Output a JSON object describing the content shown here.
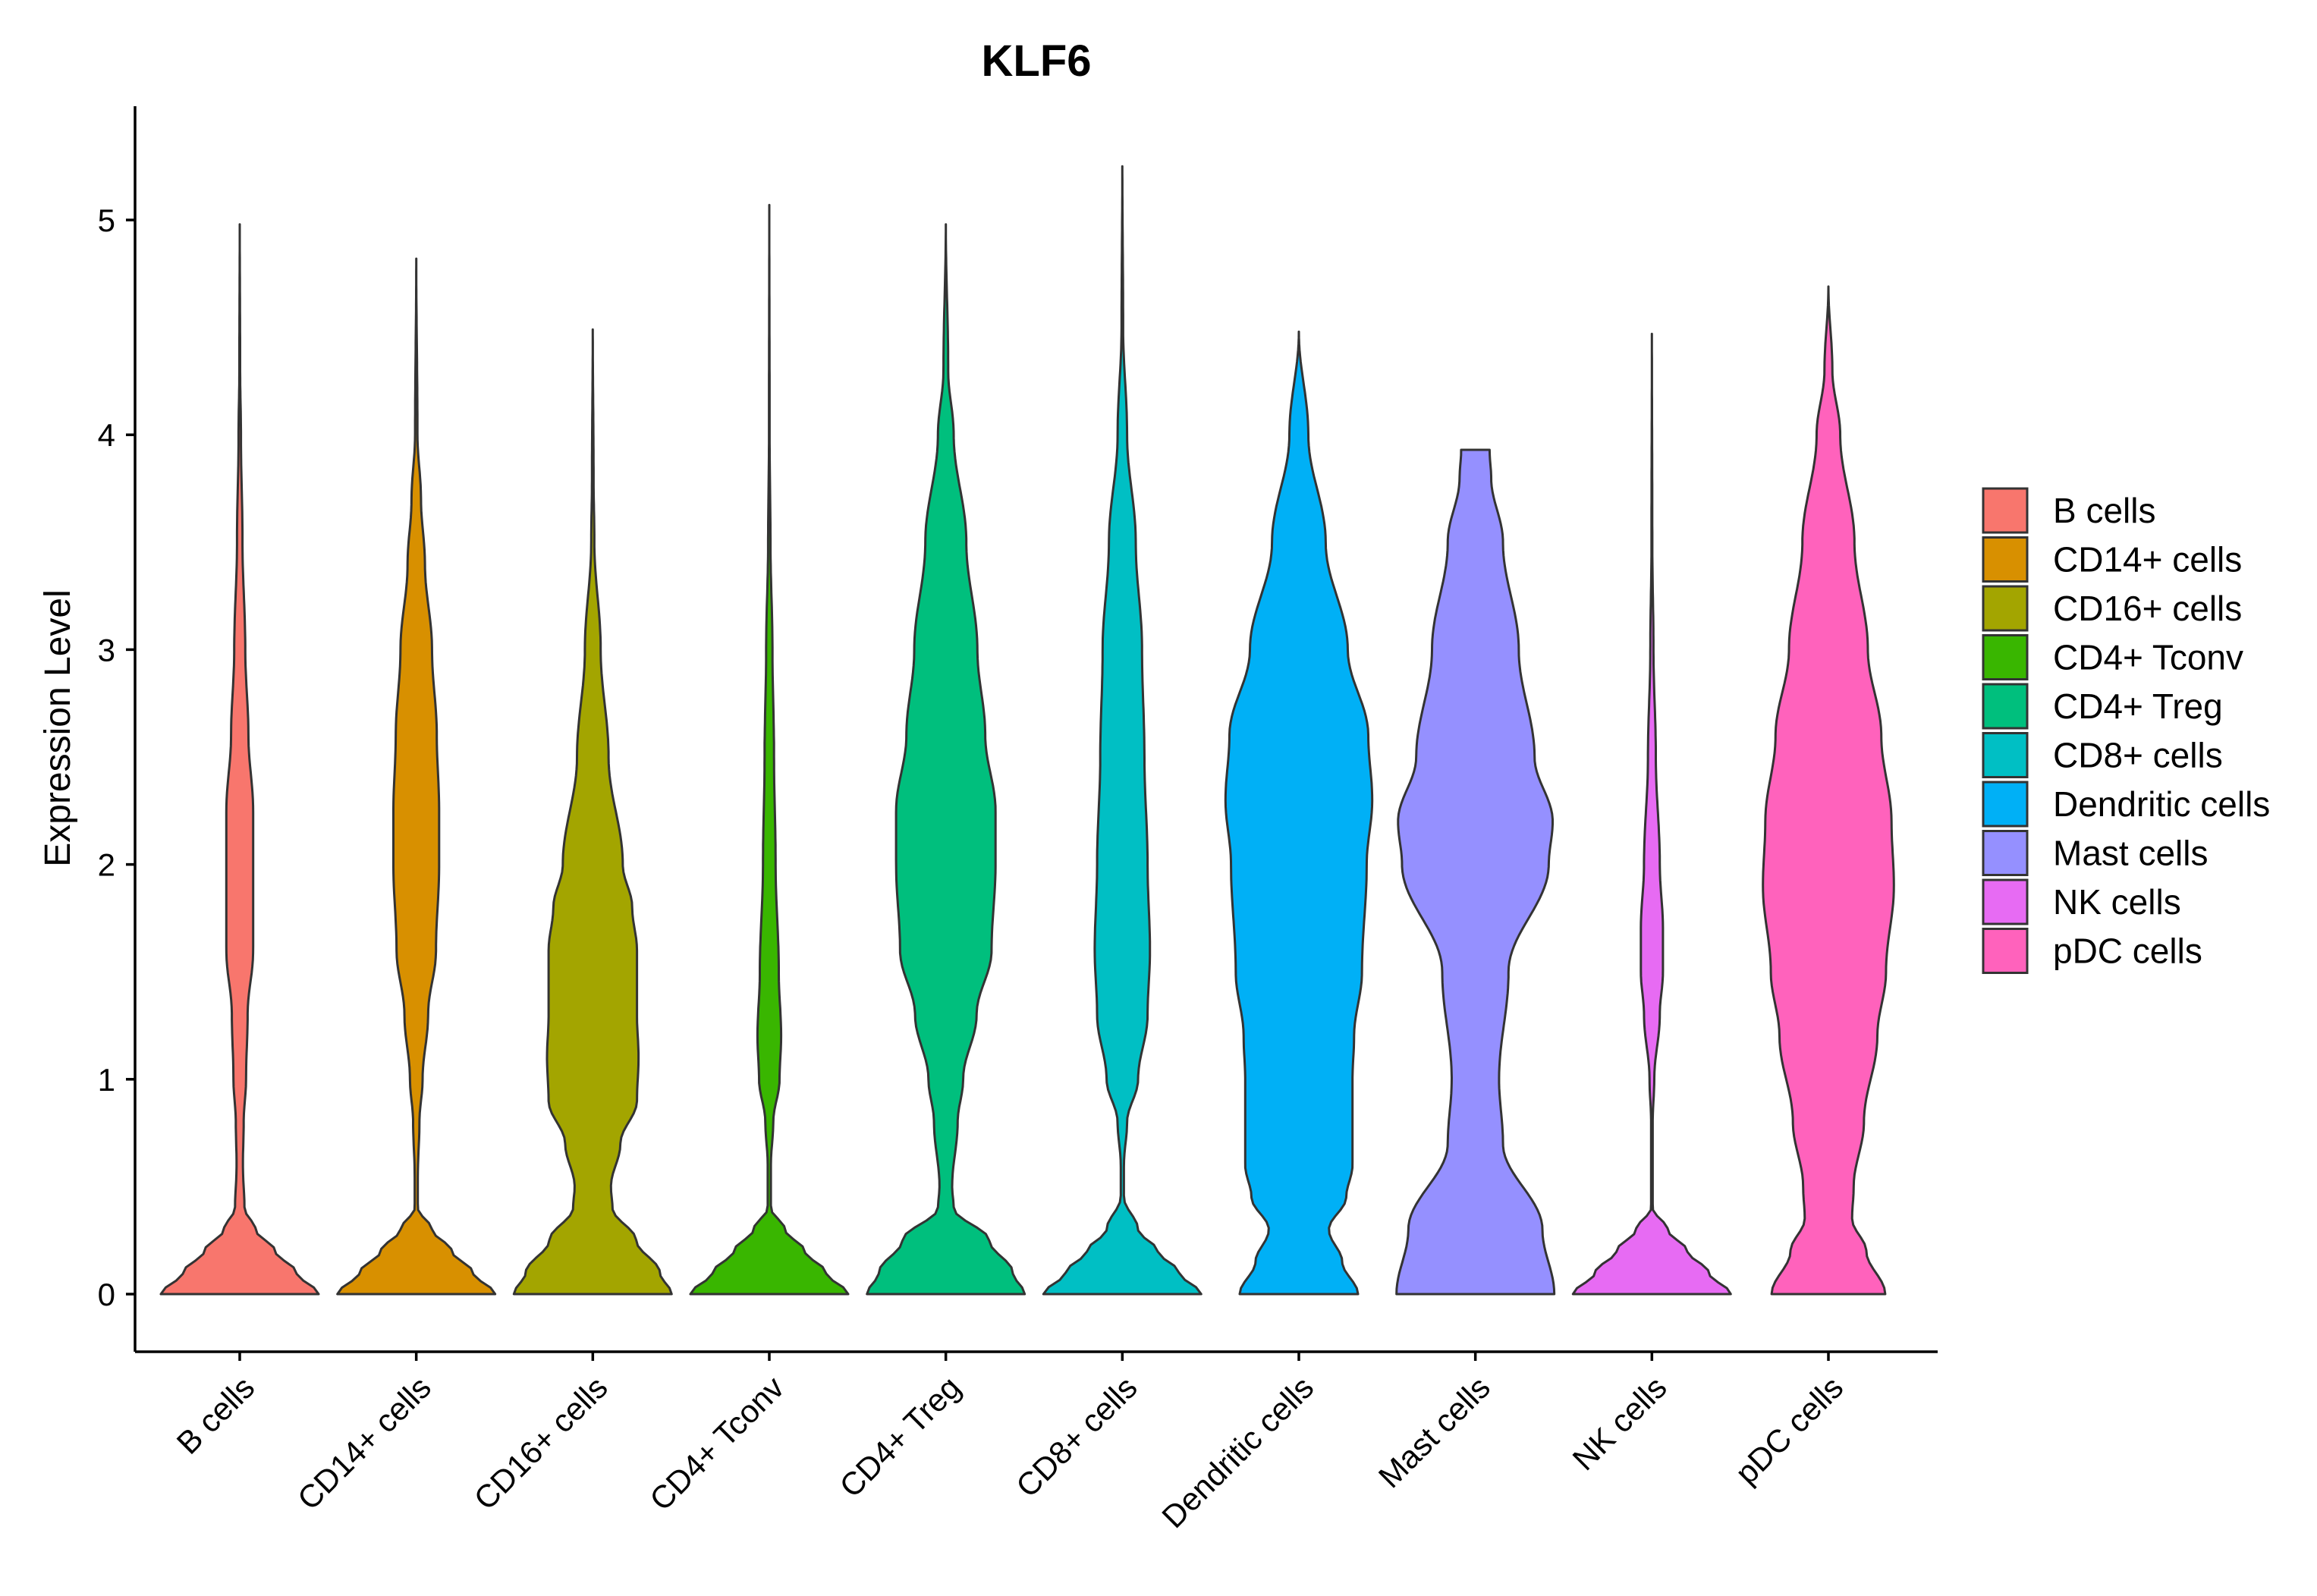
{
  "chart_data": {
    "type": "violin",
    "title": "KLF6",
    "xlabel": "",
    "ylabel": "Expression Level",
    "ylim": [
      -0.26,
      5.5
    ],
    "yticks": [
      0,
      1,
      2,
      3,
      4,
      5
    ],
    "categories": [
      "B cells",
      "CD14+ cells",
      "CD16+ cells",
      "CD4+ Tconv",
      "CD4+ Treg",
      "CD8+ cells",
      "Dendritic cells",
      "Mast cells",
      "NK cells",
      "pDC cells"
    ],
    "colors": [
      "#F8766D",
      "#D89000",
      "#A3A500",
      "#39B600",
      "#00BF7D",
      "#00BFC4",
      "#00B0F6",
      "#9590FF",
      "#E76BF3",
      "#FF62BC"
    ],
    "legend_position": "right",
    "series": [
      {
        "name": "B cells",
        "max": 4.98,
        "profile": [
          [
            0,
            1.0
          ],
          [
            0.1,
            0.72
          ],
          [
            0.2,
            0.45
          ],
          [
            0.3,
            0.2
          ],
          [
            0.4,
            0.06
          ],
          [
            0.6,
            0.04
          ],
          [
            0.8,
            0.05
          ],
          [
            1.0,
            0.08
          ],
          [
            1.3,
            0.1
          ],
          [
            1.6,
            0.17
          ],
          [
            2.0,
            0.17
          ],
          [
            2.25,
            0.17
          ],
          [
            2.6,
            0.11
          ],
          [
            3.0,
            0.07
          ],
          [
            3.5,
            0.035
          ],
          [
            4.0,
            0.015
          ],
          [
            4.3,
            0.005
          ],
          [
            4.98,
            0.0
          ]
        ]
      },
      {
        "name": "CD14+ cells",
        "max": 4.82,
        "profile": [
          [
            0,
            1.0
          ],
          [
            0.1,
            0.72
          ],
          [
            0.2,
            0.45
          ],
          [
            0.3,
            0.2
          ],
          [
            0.4,
            0.02
          ],
          [
            0.55,
            0.02
          ],
          [
            0.8,
            0.04
          ],
          [
            1.0,
            0.08
          ],
          [
            1.3,
            0.15
          ],
          [
            1.6,
            0.25
          ],
          [
            2.0,
            0.29
          ],
          [
            2.25,
            0.29
          ],
          [
            2.6,
            0.26
          ],
          [
            3.0,
            0.2
          ],
          [
            3.4,
            0.11
          ],
          [
            3.7,
            0.06
          ],
          [
            4.0,
            0.015
          ],
          [
            4.82,
            0.0
          ]
        ]
      },
      {
        "name": "CD16+ cells",
        "max": 4.49,
        "profile": [
          [
            0,
            1.0
          ],
          [
            0.1,
            0.85
          ],
          [
            0.25,
            0.55
          ],
          [
            0.4,
            0.25
          ],
          [
            0.5,
            0.23
          ],
          [
            0.7,
            0.35
          ],
          [
            0.9,
            0.56
          ],
          [
            1.1,
            0.58
          ],
          [
            1.3,
            0.56
          ],
          [
            1.6,
            0.56
          ],
          [
            1.8,
            0.5
          ],
          [
            2.0,
            0.38
          ],
          [
            2.5,
            0.2
          ],
          [
            3.0,
            0.1
          ],
          [
            3.5,
            0.02
          ],
          [
            3.8,
            0.01
          ],
          [
            4.49,
            0.0
          ]
        ]
      },
      {
        "name": "CD4+ Tconv",
        "max": 5.07,
        "profile": [
          [
            0,
            1.0
          ],
          [
            0.1,
            0.72
          ],
          [
            0.2,
            0.45
          ],
          [
            0.3,
            0.2
          ],
          [
            0.4,
            0.02
          ],
          [
            0.6,
            0.02
          ],
          [
            0.8,
            0.05
          ],
          [
            1.0,
            0.13
          ],
          [
            1.2,
            0.15
          ],
          [
            1.5,
            0.12
          ],
          [
            2.0,
            0.08
          ],
          [
            2.5,
            0.06
          ],
          [
            3.0,
            0.04
          ],
          [
            3.5,
            0.015
          ],
          [
            4.0,
            0.004
          ],
          [
            5.07,
            0.0
          ]
        ]
      },
      {
        "name": "CD4+ Treg",
        "max": 4.98,
        "profile": [
          [
            0,
            1.0
          ],
          [
            0.1,
            0.85
          ],
          [
            0.25,
            0.55
          ],
          [
            0.4,
            0.1
          ],
          [
            0.5,
            0.08
          ],
          [
            0.8,
            0.15
          ],
          [
            1.0,
            0.22
          ],
          [
            1.3,
            0.39
          ],
          [
            1.6,
            0.58
          ],
          [
            2.0,
            0.63
          ],
          [
            2.25,
            0.63
          ],
          [
            2.6,
            0.5
          ],
          [
            3.0,
            0.4
          ],
          [
            3.5,
            0.26
          ],
          [
            4.0,
            0.1
          ],
          [
            4.3,
            0.03
          ],
          [
            4.98,
            0.0
          ]
        ]
      },
      {
        "name": "CD8+ cells",
        "max": 5.25,
        "profile": [
          [
            0,
            1.0
          ],
          [
            0.1,
            0.72
          ],
          [
            0.2,
            0.45
          ],
          [
            0.3,
            0.2
          ],
          [
            0.45,
            0.02
          ],
          [
            0.6,
            0.02
          ],
          [
            0.8,
            0.06
          ],
          [
            1.0,
            0.2
          ],
          [
            1.3,
            0.32
          ],
          [
            1.6,
            0.35
          ],
          [
            2.0,
            0.32
          ],
          [
            2.5,
            0.28
          ],
          [
            3.0,
            0.25
          ],
          [
            3.5,
            0.17
          ],
          [
            4.0,
            0.06
          ],
          [
            4.5,
            0.01
          ],
          [
            5.25,
            0.0
          ]
        ]
      },
      {
        "name": "Dendritic cells",
        "max": 4.48,
        "profile": [
          [
            0,
            0.75
          ],
          [
            0.15,
            0.55
          ],
          [
            0.3,
            0.38
          ],
          [
            0.45,
            0.6
          ],
          [
            0.6,
            0.68
          ],
          [
            0.8,
            0.68
          ],
          [
            1.0,
            0.68
          ],
          [
            1.2,
            0.7
          ],
          [
            1.5,
            0.8
          ],
          [
            2.0,
            0.86
          ],
          [
            2.3,
            0.93
          ],
          [
            2.6,
            0.88
          ],
          [
            3.0,
            0.62
          ],
          [
            3.5,
            0.34
          ],
          [
            4.0,
            0.12
          ],
          [
            4.48,
            0.0
          ]
        ]
      },
      {
        "name": "Mast cells",
        "max": 3.93,
        "profile": [
          [
            0,
            1.0
          ],
          [
            0.3,
            0.85
          ],
          [
            0.7,
            0.35
          ],
          [
            1.0,
            0.3
          ],
          [
            1.5,
            0.42
          ],
          [
            2.0,
            0.93
          ],
          [
            2.2,
            0.98
          ],
          [
            2.5,
            0.75
          ],
          [
            3.0,
            0.55
          ],
          [
            3.5,
            0.35
          ],
          [
            3.8,
            0.2
          ],
          [
            3.93,
            0.18
          ]
        ]
      },
      {
        "name": "NK cells",
        "max": 4.47,
        "profile": [
          [
            0,
            1.0
          ],
          [
            0.1,
            0.72
          ],
          [
            0.2,
            0.45
          ],
          [
            0.3,
            0.2
          ],
          [
            0.4,
            0.01
          ],
          [
            0.8,
            0.01
          ],
          [
            1.0,
            0.03
          ],
          [
            1.3,
            0.1
          ],
          [
            1.5,
            0.14
          ],
          [
            1.7,
            0.14
          ],
          [
            2.0,
            0.1
          ],
          [
            2.5,
            0.05
          ],
          [
            3.0,
            0.02
          ],
          [
            3.5,
            0.005
          ],
          [
            4.47,
            0.0
          ]
        ]
      },
      {
        "name": "pDC cells",
        "max": 4.69,
        "profile": [
          [
            0,
            0.72
          ],
          [
            0.2,
            0.48
          ],
          [
            0.35,
            0.3
          ],
          [
            0.5,
            0.32
          ],
          [
            0.8,
            0.45
          ],
          [
            1.2,
            0.62
          ],
          [
            1.5,
            0.73
          ],
          [
            1.9,
            0.83
          ],
          [
            2.2,
            0.8
          ],
          [
            2.6,
            0.67
          ],
          [
            3.0,
            0.5
          ],
          [
            3.5,
            0.33
          ],
          [
            4.0,
            0.15
          ],
          [
            4.3,
            0.05
          ],
          [
            4.69,
            0.0
          ]
        ]
      }
    ]
  }
}
